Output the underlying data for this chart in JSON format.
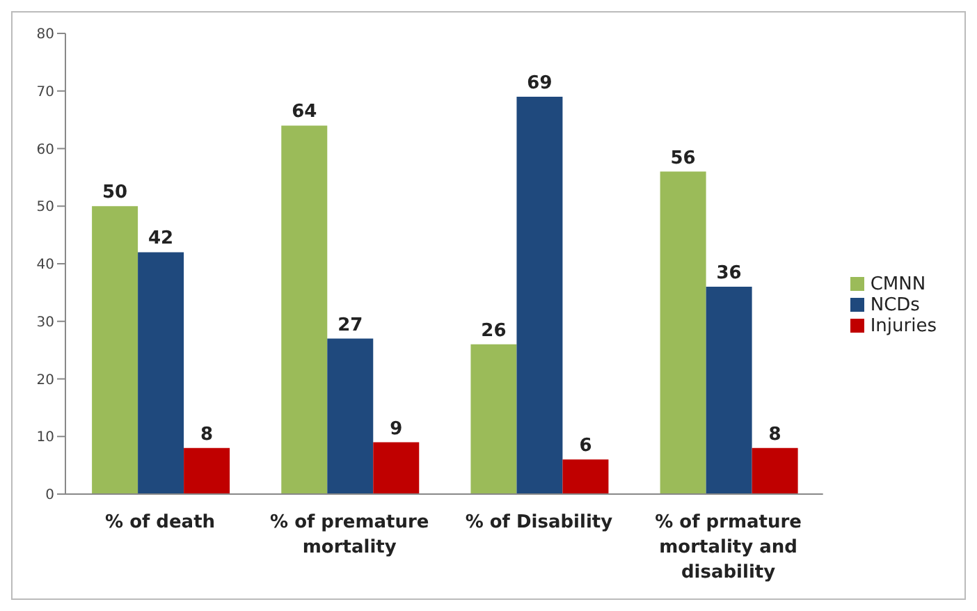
{
  "chart_data": {
    "type": "bar",
    "categories": [
      "% of death",
      "% of premature mortality",
      "% of Disability",
      "% of prmature mortality and disability"
    ],
    "series": [
      {
        "name": "CMNN",
        "color": "#9bbb59",
        "values": [
          50,
          64,
          26,
          56
        ]
      },
      {
        "name": "NCDs",
        "color": "#1f497d",
        "values": [
          42,
          27,
          69,
          36
        ]
      },
      {
        "name": "Injuries",
        "color": "#c00000",
        "values": [
          8,
          9,
          6,
          8
        ]
      }
    ],
    "ylim": [
      0,
      80
    ],
    "yticks": [
      0,
      10,
      20,
      30,
      40,
      50,
      60,
      70,
      80
    ],
    "grid": false,
    "legend": "right",
    "data_labels": true
  }
}
